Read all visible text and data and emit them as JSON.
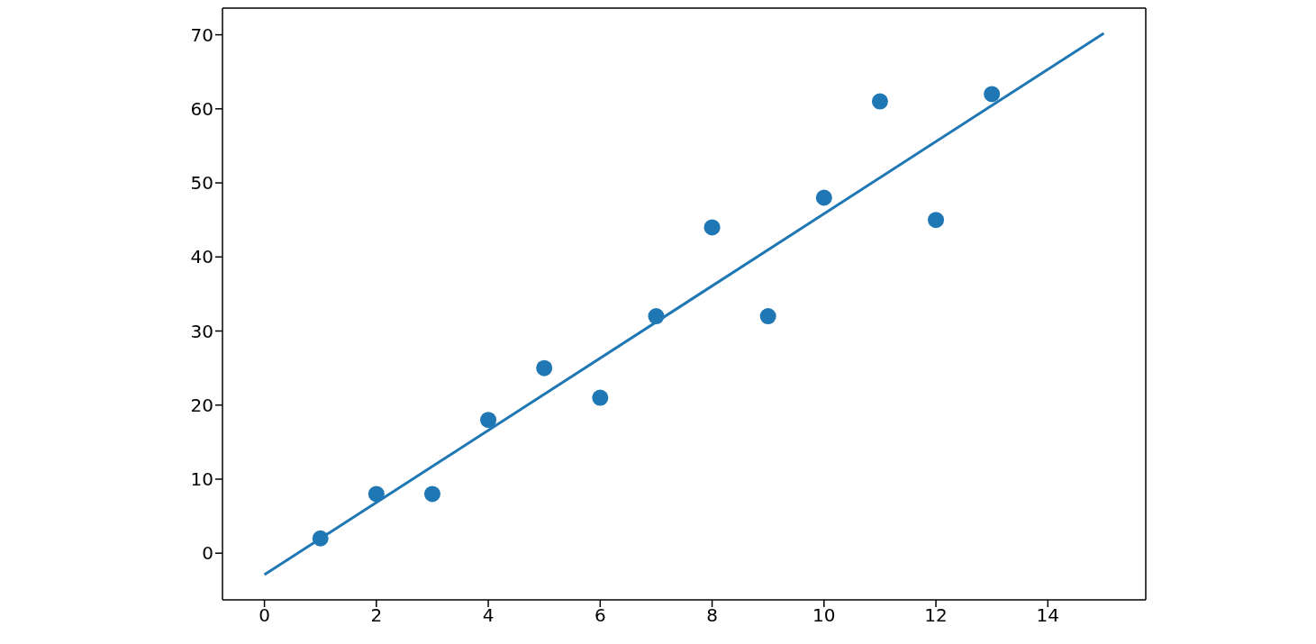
{
  "chart_data": {
    "type": "scatter",
    "series": [
      {
        "color": "#1f77b4",
        "marker": "circle",
        "x": [
          1,
          2,
          3,
          4,
          5,
          6,
          7,
          8,
          9,
          10,
          11,
          12,
          13
        ],
        "values": [
          2,
          8,
          8,
          18,
          25,
          21,
          32,
          44,
          32,
          48,
          61,
          45,
          62
        ]
      },
      {
        "type": "line",
        "color": "#1f77b4",
        "marker": "none",
        "line_style": "solid",
        "x": [
          0,
          15
        ],
        "values": [
          -2.9,
          70.2
        ]
      }
    ],
    "xlim": [
      -0.75,
      15.75
    ],
    "ylim": [
      -6.3,
      73.6
    ],
    "xticks": [
      0,
      2,
      4,
      6,
      8,
      10,
      12,
      14
    ],
    "yticks": [
      0,
      10,
      20,
      30,
      40,
      50,
      60,
      70
    ],
    "grid": false
  }
}
